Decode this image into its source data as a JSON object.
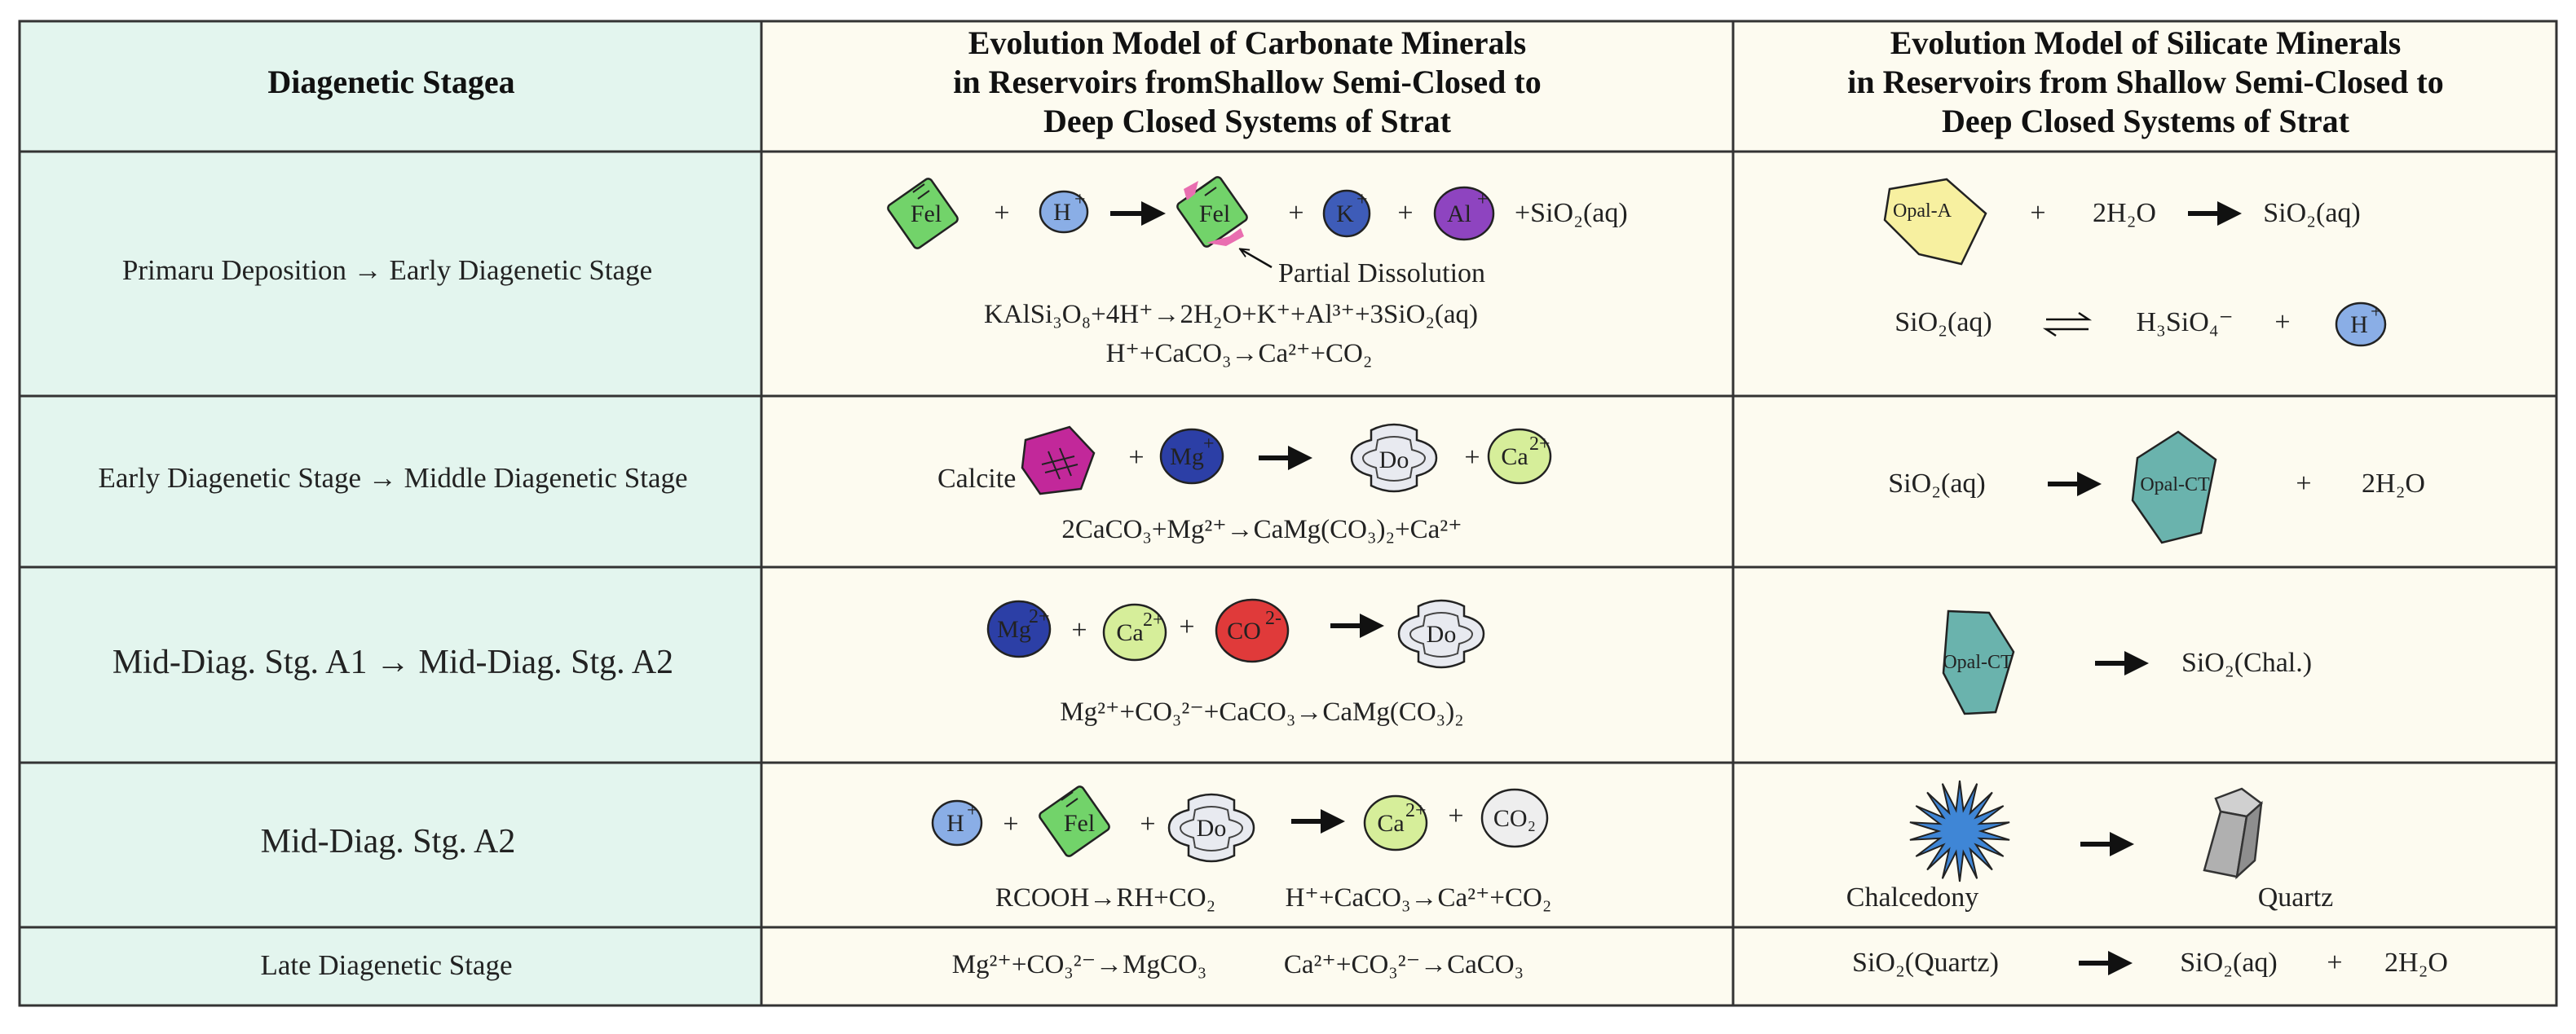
{
  "header": {
    "col1": "Diagenetic Stagea",
    "col2": [
      "Evolution Model of Carbonate Minerals",
      "in Reservoirs fromShallow Semi-Closed to",
      "Deep Closed Systems of Strat"
    ],
    "col3": [
      "Evolution Model of Silicate Minerals",
      "in Reservoirs from Shallow Semi-Closed to",
      "Deep Closed Systems of Strat"
    ]
  },
  "stages": [
    "Primaru Deposition → Early Diagenetic Stage",
    "Early Diagenetic Stage → Middle Diagenetic Stage",
    "Mid-Diag. Stg. A1 → Mid-Diag. Stg. A2",
    "Mid-Diag. Stg. A2",
    "Late Diagenetic Stage"
  ],
  "carbonate": {
    "r1": {
      "fel": "Fel",
      "h": "H",
      "k": "K",
      "al": "Al",
      "sio2": "+SiO₂(aq)",
      "plus": "+",
      "partial": "Partial Dissolution",
      "eq1": "KAlSi₃O₈+4H⁺→2H₂O+K⁺+Al³⁺+3SiO₂(aq)",
      "eq2": "H⁺+CaCO₃→Ca²⁺+CO₂"
    },
    "r2": {
      "calcite": "Calcite",
      "mg": "Mg",
      "do": "Do",
      "ca": "Ca",
      "eq": "2CaCO₃+Mg²⁺→CaMg(CO₃)₂+Ca²⁺"
    },
    "r3": {
      "mg": "Mg",
      "ca": "Ca",
      "co3": "CO",
      "do": "Do",
      "eq": "Mg²⁺+CO₃²⁻+CaCO₃→CaMg(CO₃)₂"
    },
    "r4": {
      "h": "H",
      "fel": "Fel",
      "do": "Do",
      "ca": "Ca",
      "co2": "CO₂",
      "eq1": "RCOOH→RH+CO₂",
      "eq2": "H⁺+CaCO₃→Ca²⁺+CO₂"
    },
    "r5": {
      "eq1": "Mg²⁺+CO₃²⁻→MgCO₃",
      "eq2": "Ca²⁺+CO₃²⁻→CaCO₃"
    }
  },
  "silicate": {
    "r1": {
      "opal_a": "Opal-A",
      "plus": "+",
      "water": "2H₂O",
      "sio2": "SiO₂(aq)",
      "sio2b": "SiO₂(aq)",
      "h3sio4": "H₃SiO₄⁻",
      "h": "H"
    },
    "r2": {
      "sio2": "SiO₂(aq)",
      "opal_ct": "Opal-CT",
      "plus": "+",
      "water": "2H₂O"
    },
    "r3": {
      "opal_ct": "Opal-CT",
      "chal": "SiO₂(Chal.)"
    },
    "r4": {
      "chalcedony": "Chalcedony",
      "quartz": "Quartz"
    },
    "r5": {
      "quartz": "SiO₂(Quartz)",
      "sio2": "SiO₂(aq)",
      "plus": "+",
      "water": "2H₂O"
    }
  },
  "colors": {
    "stage_bg": "#e3f5ee",
    "cell_bg": "#fdfbf0",
    "border": "#333333",
    "feldspar": "#72d36a",
    "h_ion": "#8aaee6",
    "k_ion": "#3e5cb8",
    "al_ion": "#8e44c0",
    "calcite": "#c2289a",
    "mg_ion": "#2c3fa6",
    "ca_ion": "#d6ee9a",
    "co3_ion": "#e03a3a",
    "dolomite": "#e8eaf0",
    "co2": "#eeeeee",
    "opal_a": "#f7f0a0",
    "opal_ct": "#6ab3ad",
    "chalcedony": "#3f86d6",
    "quartz": "#a8a8a8",
    "pink": "#e96eb0"
  }
}
